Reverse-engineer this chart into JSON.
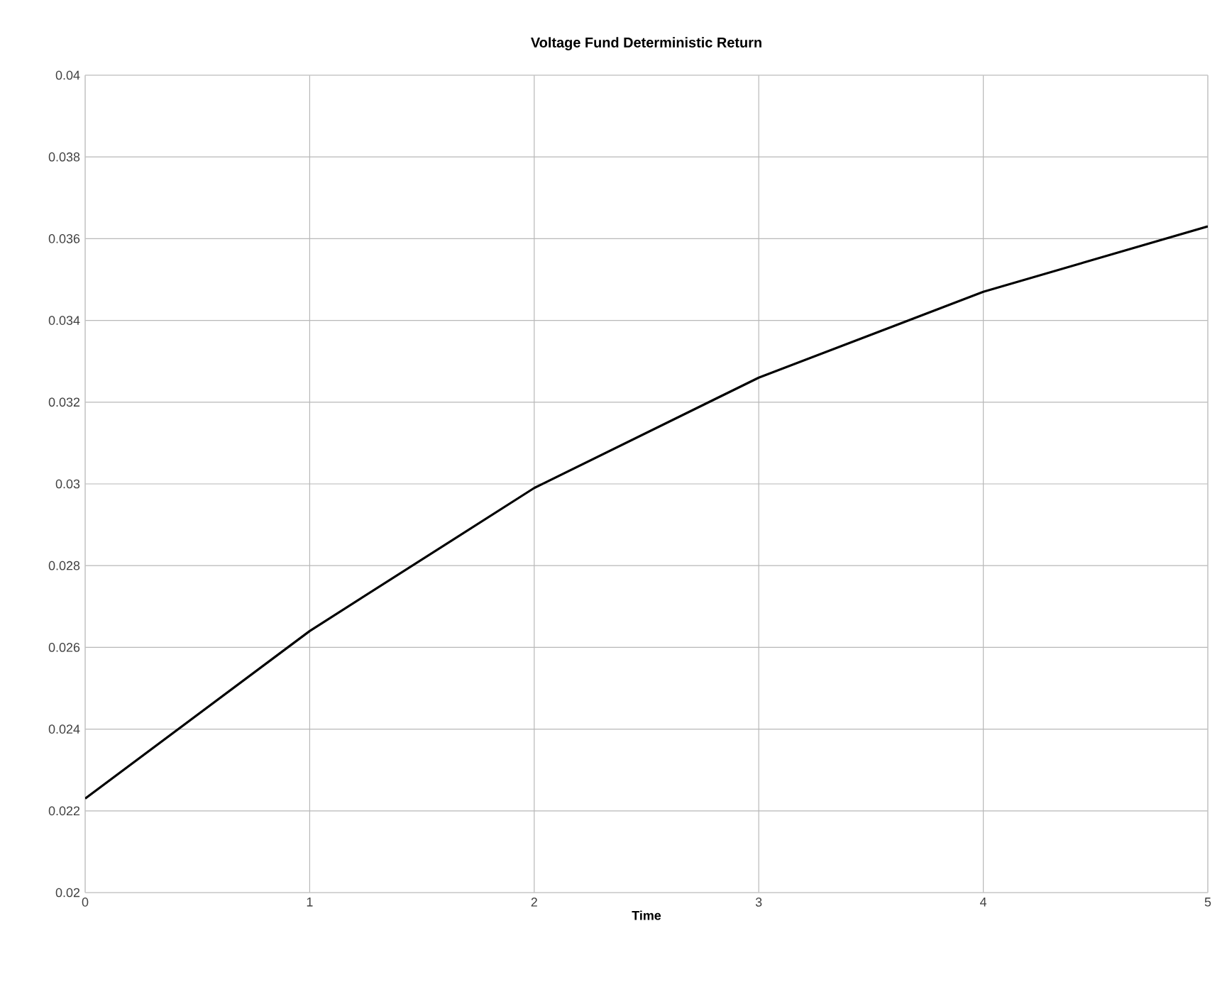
{
  "chart_data": {
    "type": "line",
    "title": "Voltage Fund Deterministic Return",
    "xlabel": "Time",
    "x": [
      0,
      1,
      2,
      3,
      4,
      5
    ],
    "series": [
      {
        "color": "#000000",
        "values": [
          0.0223,
          0.0264,
          0.0299,
          0.0326,
          0.0347,
          0.0363
        ]
      }
    ],
    "xlim": [
      0,
      5
    ],
    "xticks": [
      0,
      1,
      2,
      3,
      4,
      5
    ],
    "ylim": [
      0.02,
      0.04
    ],
    "yticks": [
      0.02,
      0.022,
      0.024,
      0.026,
      0.028,
      0.03,
      0.032,
      0.034,
      0.036,
      0.038,
      0.04
    ],
    "grid": true,
    "marker": "none",
    "line_style": "solid"
  }
}
